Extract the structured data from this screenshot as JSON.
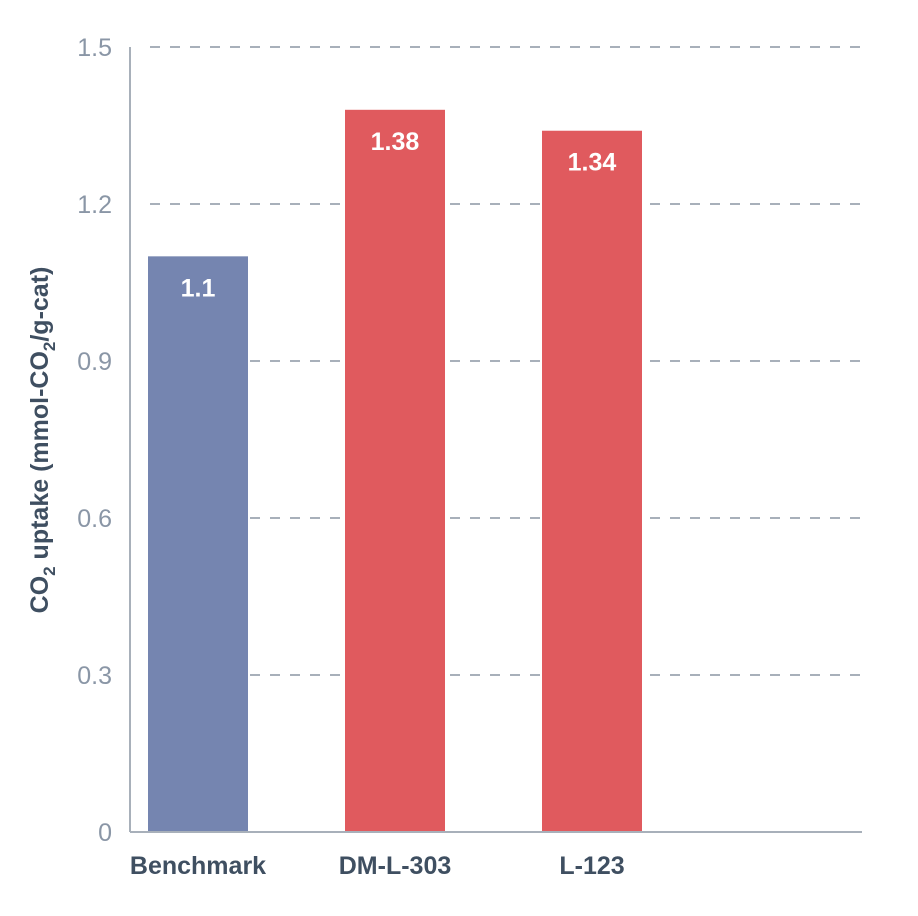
{
  "chart_data": {
    "type": "bar",
    "title": "",
    "xlabel": "",
    "ylabel": {
      "prefix": "CO",
      "sub1": "2",
      "middle": " uptake (mmol-CO",
      "sub2": "2",
      "suffix": "/g-cat)"
    },
    "categories": [
      "Benchmark",
      "DM-L-303",
      "L-123"
    ],
    "values": [
      1.1,
      1.38,
      1.34
    ],
    "data_labels": [
      "1.1",
      "1.38",
      "1.34"
    ],
    "colors": [
      "#7585b0",
      "#e05a5e",
      "#e05a5e"
    ],
    "ylim": [
      0,
      1.5
    ],
    "yticks": [
      0,
      0.3,
      0.6,
      0.9,
      1.2,
      1.5
    ],
    "ytick_labels": [
      "0",
      "0.3",
      "0.6",
      "0.9",
      "1.2",
      "1.5"
    ],
    "grid": true,
    "axis_color": "#a8b0ba",
    "grid_color": "#a8b0ba"
  }
}
